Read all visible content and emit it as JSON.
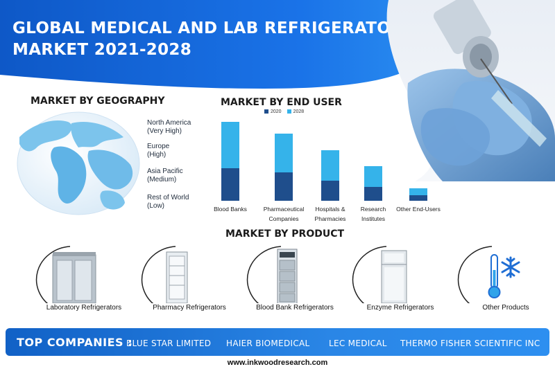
{
  "header": {
    "title_line1": "GLOBAL MEDICAL AND LAB REFRIGERATORS",
    "title_line2": "MARKET 2021-2028"
  },
  "geography": {
    "title": "MARKET BY GEOGRAPHY",
    "regions": [
      {
        "name": "North America",
        "level": "(Very High)"
      },
      {
        "name": "Europe",
        "level": "(High)"
      },
      {
        "name": "Asia Pacific",
        "level": "(Medium)"
      },
      {
        "name": "Rest of World",
        "level": "(Low)"
      }
    ]
  },
  "end_user": {
    "title": "MARKET BY END USER",
    "legend": [
      "2020",
      "2028"
    ],
    "colors": {
      "2020": "#1f4e8c",
      "2028": "#35b3ea"
    }
  },
  "chart_data": {
    "type": "bar",
    "stacked": true,
    "categories": [
      [
        "Blood Banks"
      ],
      [
        "Pharmaceutical",
        "Companies"
      ],
      [
        "Hospitals &",
        "Pharmacies"
      ],
      [
        "Research",
        "Institutes"
      ],
      [
        "Other End-Users"
      ]
    ],
    "series": [
      {
        "name": "2020",
        "values": [
          47,
          41,
          29,
          20,
          8
        ]
      },
      {
        "name": "2028",
        "values": [
          67,
          56,
          44,
          30,
          10
        ]
      }
    ],
    "title": "MARKET BY END USER",
    "legend_placement": "top",
    "grid": false
  },
  "product": {
    "title": "MARKET BY PRODUCT",
    "items": [
      {
        "label": "Laboratory Refrigerators",
        "icon": "lab-refrigerator-icon"
      },
      {
        "label": "Pharmacy Refrigerators",
        "icon": "pharmacy-refrigerator-icon"
      },
      {
        "label": "Blood Bank Refrigerators",
        "icon": "blood-bank-refrigerator-icon"
      },
      {
        "label": "Enzyme Refrigerators",
        "icon": "enzyme-refrigerator-icon"
      },
      {
        "label": "Other Products",
        "icon": "thermometer-snowflake-icon"
      }
    ]
  },
  "companies": {
    "label": "TOP COMPANIES :",
    "names": [
      "BLUE STAR LIMITED",
      "HAIER BIOMEDICAL",
      "LEC MEDICAL",
      "THERMO FISHER SCIENTIFIC INC"
    ]
  },
  "footer": {
    "url": "www.inkwoodresearch.com"
  },
  "colors": {
    "brand_blue": "#1565d8",
    "light_blue": "#35b3ea",
    "dark_blue": "#1f4e8c"
  }
}
